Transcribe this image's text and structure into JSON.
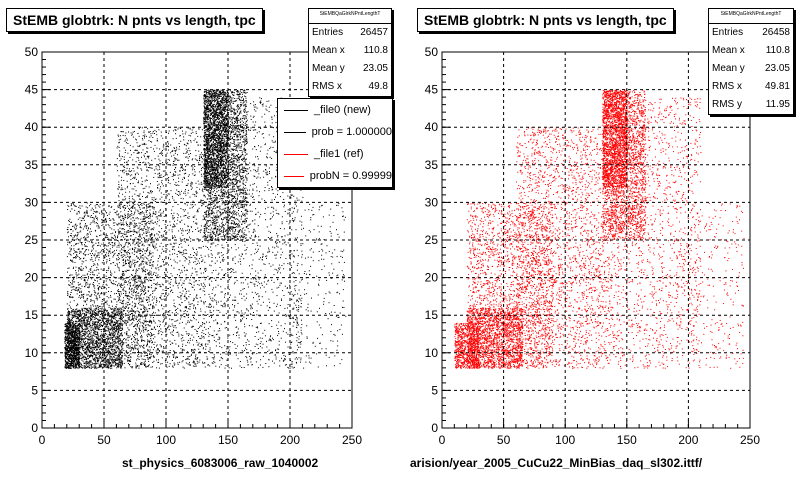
{
  "chart_data": [
    {
      "type": "scatter",
      "title": "StEMB globtrk: N pnts vs length, tpc",
      "xlabel": "st_physics_6083006_raw_1040002",
      "ylabel": "",
      "xlim": [
        0,
        250
      ],
      "ylim": [
        0,
        50
      ],
      "xticks": [
        0,
        50,
        100,
        150,
        200,
        250
      ],
      "yticks": [
        0,
        5,
        10,
        15,
        20,
        25,
        30,
        35,
        40,
        45,
        50
      ],
      "grid": true,
      "point_color": "#000000",
      "stats_header": "StEMBQaGlrkNPntLengthT",
      "stats": [
        {
          "label": "Entries",
          "value": "26457"
        },
        {
          "label": "Mean x",
          "value": "110.8"
        },
        {
          "label": "Mean y",
          "value": "23.05"
        },
        {
          "label": "RMS x",
          "value": "49.8"
        }
      ],
      "legend": [
        {
          "label": "_file0 (new)",
          "color": "#000000"
        },
        {
          "label": "prob = 1.000000",
          "color": "#000000"
        },
        {
          "label": "_file1 (ref)",
          "color": "#ff0000"
        },
        {
          "label": "probN = 0.99999",
          "color": "#ff0000"
        }
      ],
      "density_regions": [
        {
          "x": [
            18,
            30
          ],
          "y": [
            8,
            14
          ],
          "weight": 3
        },
        {
          "x": [
            20,
            65
          ],
          "y": [
            8,
            16
          ],
          "weight": 6
        },
        {
          "x": [
            20,
            90
          ],
          "y": [
            8,
            30
          ],
          "weight": 8
        },
        {
          "x": [
            60,
            140
          ],
          "y": [
            8,
            40
          ],
          "weight": 9
        },
        {
          "x": [
            130,
            165
          ],
          "y": [
            25,
            45
          ],
          "weight": 8
        },
        {
          "x": [
            130,
            150
          ],
          "y": [
            32,
            45
          ],
          "weight": 6
        },
        {
          "x": [
            140,
            210
          ],
          "y": [
            8,
            44
          ],
          "weight": 5
        },
        {
          "x": [
            200,
            245
          ],
          "y": [
            8,
            30
          ],
          "weight": 1
        }
      ]
    },
    {
      "type": "scatter",
      "title": "StEMB globtrk: N pnts vs length, tpc",
      "xlabel": "arision/year_2005_CuCu22_MinBias_daq_sl302.ittf/",
      "ylabel": "",
      "xlim": [
        0,
        250
      ],
      "ylim": [
        0,
        50
      ],
      "xticks": [
        0,
        50,
        100,
        150,
        200,
        250
      ],
      "yticks": [
        0,
        5,
        10,
        15,
        20,
        25,
        30,
        35,
        40,
        45,
        50
      ],
      "grid": true,
      "point_color": "#ff0000",
      "stats_header": "StEMBQaGlrkNPntLengthT",
      "stats": [
        {
          "label": "Entries",
          "value": "26458"
        },
        {
          "label": "Mean x",
          "value": "110.8"
        },
        {
          "label": "Mean y",
          "value": "23.05"
        },
        {
          "label": "RMS x",
          "value": "49.81"
        },
        {
          "label": "RMS y",
          "value": "11.95"
        }
      ],
      "density_regions": [
        {
          "x": [
            10,
            30
          ],
          "y": [
            8,
            14
          ],
          "weight": 3
        },
        {
          "x": [
            20,
            65
          ],
          "y": [
            8,
            16
          ],
          "weight": 6
        },
        {
          "x": [
            20,
            90
          ],
          "y": [
            8,
            30
          ],
          "weight": 8
        },
        {
          "x": [
            60,
            140
          ],
          "y": [
            8,
            40
          ],
          "weight": 9
        },
        {
          "x": [
            130,
            165
          ],
          "y": [
            25,
            45
          ],
          "weight": 8
        },
        {
          "x": [
            130,
            150
          ],
          "y": [
            32,
            45
          ],
          "weight": 6
        },
        {
          "x": [
            140,
            210
          ],
          "y": [
            8,
            44
          ],
          "weight": 5
        },
        {
          "x": [
            200,
            245
          ],
          "y": [
            8,
            30
          ],
          "weight": 1
        }
      ]
    }
  ]
}
